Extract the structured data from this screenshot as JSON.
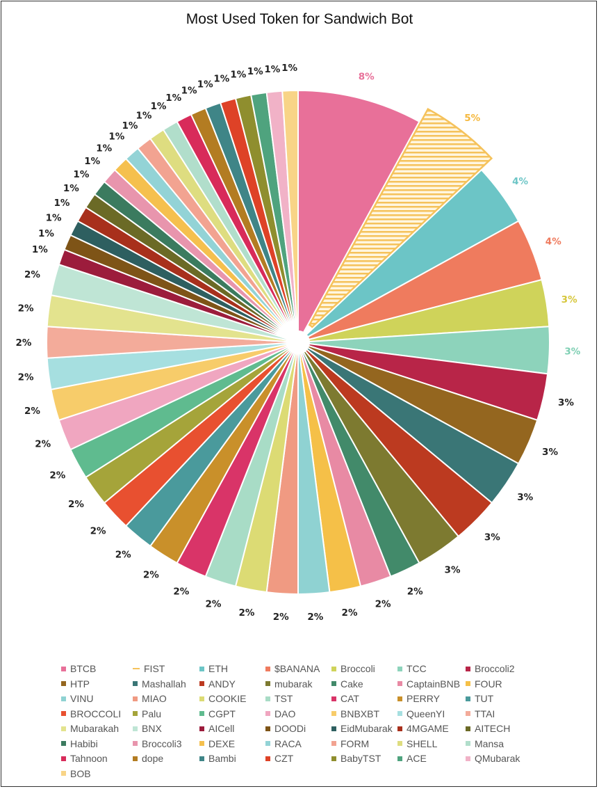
{
  "chart_data": {
    "type": "pie",
    "title": "Most Used Token for Sandwich Bot",
    "highlighted": "FIST",
    "legend_position": "bottom",
    "slices": [
      {
        "label": "BTCB",
        "value": 8,
        "display": "8%",
        "color": "#e87099",
        "label_color": "#e87099"
      },
      {
        "label": "FIST",
        "value": 5,
        "display": "5%",
        "color": "#f5c25b",
        "label_color": "#f5b83d"
      },
      {
        "label": "ETH",
        "value": 4,
        "display": "4%",
        "color": "#6cc5c6",
        "label_color": "#6cc5c6"
      },
      {
        "label": "$BANANA",
        "value": 4,
        "display": "4%",
        "color": "#ef7b5e",
        "label_color": "#ef7b5e"
      },
      {
        "label": "Broccoli",
        "value": 3,
        "display": "3%",
        "color": "#cfd35a",
        "label_color": "#d6c63a"
      },
      {
        "label": "TCC",
        "value": 3,
        "display": "3%",
        "color": "#8dd3bb",
        "label_color": "#7ecfb3"
      },
      {
        "label": "Broccoli2",
        "value": 3,
        "display": "3%",
        "color": "#b82548",
        "label_color": "#222222"
      },
      {
        "label": "HTP",
        "value": 3,
        "display": "3%",
        "color": "#94661f",
        "label_color": "#222222"
      },
      {
        "label": "Mashallah",
        "value": 3,
        "display": "3%",
        "color": "#3a7676",
        "label_color": "#222222"
      },
      {
        "label": "ANDY",
        "value": 3,
        "display": "3%",
        "color": "#bc3a20",
        "label_color": "#222222"
      },
      {
        "label": "mubarak",
        "value": 3,
        "display": "3%",
        "color": "#7d7a30",
        "label_color": "#222222"
      },
      {
        "label": "Cake",
        "value": 2,
        "display": "2%",
        "color": "#428a6a",
        "label_color": "#222222"
      },
      {
        "label": "CaptainBNB",
        "value": 2,
        "display": "2%",
        "color": "#e88aa4",
        "label_color": "#222222"
      },
      {
        "label": "FOUR",
        "value": 2,
        "display": "2%",
        "color": "#f5c048",
        "label_color": "#222222"
      },
      {
        "label": "VINU",
        "value": 2,
        "display": "2%",
        "color": "#8fd2d2",
        "label_color": "#222222"
      },
      {
        "label": "MIAO",
        "value": 2,
        "display": "2%",
        "color": "#f09a82",
        "label_color": "#222222"
      },
      {
        "label": "COOKIE",
        "value": 2,
        "display": "2%",
        "color": "#dcdb74",
        "label_color": "#222222"
      },
      {
        "label": "TST",
        "value": 2,
        "display": "2%",
        "color": "#a8dcc6",
        "label_color": "#222222"
      },
      {
        "label": "CAT",
        "value": 2,
        "display": "2%",
        "color": "#d93468",
        "label_color": "#222222"
      },
      {
        "label": "PERRY",
        "value": 2,
        "display": "2%",
        "color": "#c9902a",
        "label_color": "#222222"
      },
      {
        "label": "TUT",
        "value": 2,
        "display": "2%",
        "color": "#4a9a9c",
        "label_color": "#222222"
      },
      {
        "label": "BROCCOLI",
        "value": 2,
        "display": "2%",
        "color": "#e85030",
        "label_color": "#222222"
      },
      {
        "label": "Palu",
        "value": 2,
        "display": "2%",
        "color": "#a5a43a",
        "label_color": "#222222"
      },
      {
        "label": "CGPT",
        "value": 2,
        "display": "2%",
        "color": "#5fbb8f",
        "label_color": "#222222"
      },
      {
        "label": "DAO",
        "value": 2,
        "display": "2%",
        "color": "#f0a6c0",
        "label_color": "#222222"
      },
      {
        "label": "BNBXBT",
        "value": 2,
        "display": "2%",
        "color": "#f7cc6a",
        "label_color": "#222222"
      },
      {
        "label": "QueenYI",
        "value": 2,
        "display": "2%",
        "color": "#a6dfe0",
        "label_color": "#222222"
      },
      {
        "label": "TTAI",
        "value": 2,
        "display": "2%",
        "color": "#f3ab9a",
        "label_color": "#222222"
      },
      {
        "label": "Mubarakah",
        "value": 2,
        "display": "2%",
        "color": "#e3e38e",
        "label_color": "#222222"
      },
      {
        "label": "BNX",
        "value": 2,
        "display": "2%",
        "color": "#bfe5d5",
        "label_color": "#222222"
      },
      {
        "label": "AICell",
        "value": 1,
        "display": "1%",
        "color": "#9c1c3c",
        "label_color": "#222222"
      },
      {
        "label": "DOODi",
        "value": 1,
        "display": "1%",
        "color": "#7e5417",
        "label_color": "#222222"
      },
      {
        "label": "EidMubarak",
        "value": 1,
        "display": "1%",
        "color": "#2e5f60",
        "label_color": "#222222"
      },
      {
        "label": "4MGAME",
        "value": 1,
        "display": "1%",
        "color": "#a8301c",
        "label_color": "#222222"
      },
      {
        "label": "AITECH",
        "value": 1,
        "display": "1%",
        "color": "#6b6a26",
        "label_color": "#222222"
      },
      {
        "label": "Habibi",
        "value": 1,
        "display": "1%",
        "color": "#3b7b5f",
        "label_color": "#222222"
      },
      {
        "label": "Broccoli3",
        "value": 1,
        "display": "1%",
        "color": "#e895ad",
        "label_color": "#222222"
      },
      {
        "label": "DEXE",
        "value": 1,
        "display": "1%",
        "color": "#f5c04e",
        "label_color": "#222222"
      },
      {
        "label": "RACA",
        "value": 1,
        "display": "1%",
        "color": "#93d3d6",
        "label_color": "#222222"
      },
      {
        "label": "FORM",
        "value": 1,
        "display": "1%",
        "color": "#f2a391",
        "label_color": "#222222"
      },
      {
        "label": "SHELL",
        "value": 1,
        "display": "1%",
        "color": "#dedd80",
        "label_color": "#222222"
      },
      {
        "label": "Mansa",
        "value": 1,
        "display": "1%",
        "color": "#b1decb",
        "label_color": "#222222"
      },
      {
        "label": "Tahnoon",
        "value": 1,
        "display": "1%",
        "color": "#d82b5a",
        "label_color": "#222222"
      },
      {
        "label": "dope",
        "value": 1,
        "display": "1%",
        "color": "#b37c22",
        "label_color": "#222222"
      },
      {
        "label": "Bambi",
        "value": 1,
        "display": "1%",
        "color": "#3f8587",
        "label_color": "#222222"
      },
      {
        "label": "CZT",
        "value": 1,
        "display": "1%",
        "color": "#de4227",
        "label_color": "#222222"
      },
      {
        "label": "BabyTST",
        "value": 1,
        "display": "1%",
        "color": "#8f8e2e",
        "label_color": "#222222"
      },
      {
        "label": "ACE",
        "value": 1,
        "display": "1%",
        "color": "#4fa37e",
        "label_color": "#222222"
      },
      {
        "label": "QMubarak",
        "value": 1,
        "display": "1%",
        "color": "#f1b2c7",
        "label_color": "#222222"
      },
      {
        "label": "BOB",
        "value": 1,
        "display": "1%",
        "color": "#f8d487",
        "label_color": "#222222"
      }
    ]
  }
}
